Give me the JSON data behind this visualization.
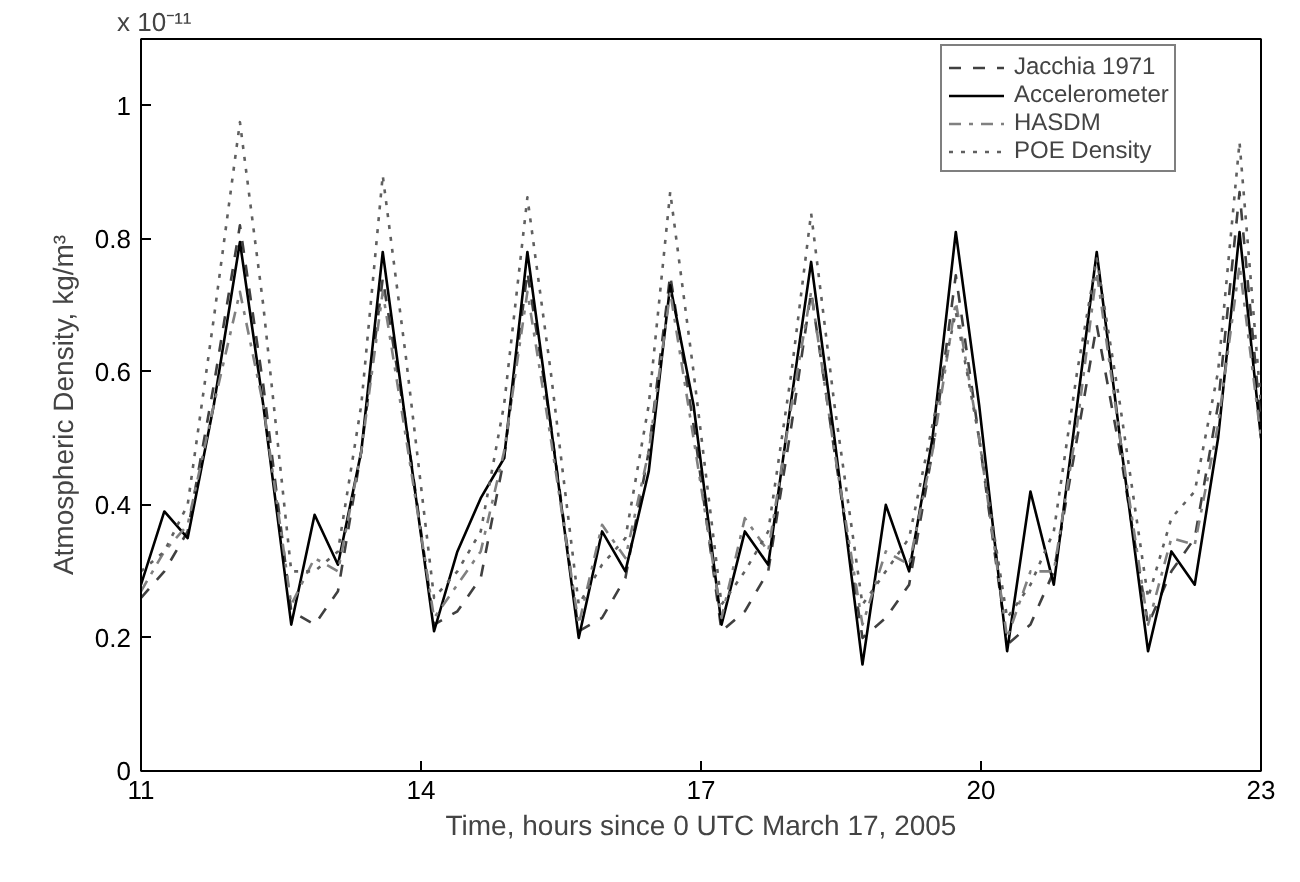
{
  "chart_data": {
    "type": "line",
    "xlabel": "Time, hours since 0 UTC March 17, 2005",
    "ylabel": "Atmospheric Density, kg/m³",
    "annotations": [
      "x 10⁻¹¹"
    ],
    "x": [
      11.0,
      11.25,
      11.5,
      11.78,
      12.06,
      12.31,
      12.61,
      12.86,
      13.11,
      13.36,
      13.59,
      13.84,
      14.14,
      14.39,
      14.64,
      14.89,
      15.14,
      15.39,
      15.69,
      15.94,
      16.19,
      16.44,
      16.67,
      16.92,
      17.22,
      17.47,
      17.72,
      17.97,
      18.18,
      18.43,
      18.73,
      18.98,
      19.23,
      19.48,
      19.73,
      19.98,
      20.28,
      20.53,
      20.78,
      21.03,
      21.24,
      21.49,
      21.79,
      22.04,
      22.29,
      22.54,
      22.77,
      23.0
    ],
    "series": [
      {
        "name": "Jacchia 1971",
        "color": "#404040",
        "line_style": "dashed",
        "values": [
          0.26,
          0.3,
          0.36,
          0.58,
          0.82,
          0.58,
          0.24,
          0.22,
          0.27,
          0.48,
          0.74,
          0.52,
          0.22,
          0.24,
          0.29,
          0.47,
          0.75,
          0.52,
          0.21,
          0.23,
          0.29,
          0.48,
          0.745,
          0.52,
          0.21,
          0.24,
          0.3,
          0.52,
          0.72,
          0.48,
          0.2,
          0.23,
          0.28,
          0.48,
          0.745,
          0.5,
          0.19,
          0.22,
          0.3,
          0.5,
          0.67,
          0.48,
          0.22,
          0.3,
          0.35,
          0.55,
          0.87,
          0.52
        ]
      },
      {
        "name": "Accelerometer",
        "color": "#000000",
        "line_style": "solid",
        "values": [
          0.28,
          0.39,
          0.35,
          0.55,
          0.795,
          0.55,
          0.22,
          0.385,
          0.31,
          0.48,
          0.78,
          0.52,
          0.21,
          0.33,
          0.41,
          0.47,
          0.78,
          0.52,
          0.2,
          0.36,
          0.3,
          0.45,
          0.73,
          0.55,
          0.22,
          0.36,
          0.31,
          0.56,
          0.765,
          0.5,
          0.16,
          0.4,
          0.3,
          0.5,
          0.81,
          0.55,
          0.18,
          0.42,
          0.28,
          0.55,
          0.78,
          0.5,
          0.18,
          0.33,
          0.28,
          0.5,
          0.81,
          0.5
        ]
      },
      {
        "name": "HASDM",
        "color": "#808080",
        "line_style": "dashdot",
        "values": [
          0.27,
          0.33,
          0.37,
          0.55,
          0.72,
          0.55,
          0.25,
          0.32,
          0.3,
          0.48,
          0.72,
          0.5,
          0.23,
          0.28,
          0.33,
          0.48,
          0.72,
          0.5,
          0.22,
          0.37,
          0.32,
          0.48,
          0.72,
          0.5,
          0.23,
          0.38,
          0.33,
          0.55,
          0.72,
          0.48,
          0.22,
          0.33,
          0.31,
          0.48,
          0.705,
          0.5,
          0.2,
          0.3,
          0.3,
          0.52,
          0.75,
          0.5,
          0.22,
          0.35,
          0.34,
          0.52,
          0.76,
          0.5
        ]
      },
      {
        "name": "POE Density",
        "color": "#606060",
        "line_style": "dotted",
        "values": [
          0.3,
          0.33,
          0.4,
          0.68,
          0.975,
          0.7,
          0.3,
          0.3,
          0.33,
          0.55,
          0.895,
          0.62,
          0.26,
          0.3,
          0.36,
          0.55,
          0.862,
          0.6,
          0.25,
          0.31,
          0.35,
          0.55,
          0.87,
          0.6,
          0.25,
          0.3,
          0.36,
          0.6,
          0.838,
          0.55,
          0.25,
          0.3,
          0.35,
          0.52,
          0.69,
          0.5,
          0.23,
          0.28,
          0.36,
          0.6,
          0.77,
          0.55,
          0.26,
          0.38,
          0.42,
          0.6,
          0.945,
          0.55
        ]
      }
    ],
    "xlim": [
      11,
      23
    ],
    "xticks": [
      11,
      14,
      17,
      20,
      23
    ],
    "ylim": [
      0,
      1.1
    ],
    "yticks": [
      0,
      0.2,
      0.4,
      0.6,
      0.8,
      1
    ],
    "legend": "top right",
    "grid": false
  }
}
